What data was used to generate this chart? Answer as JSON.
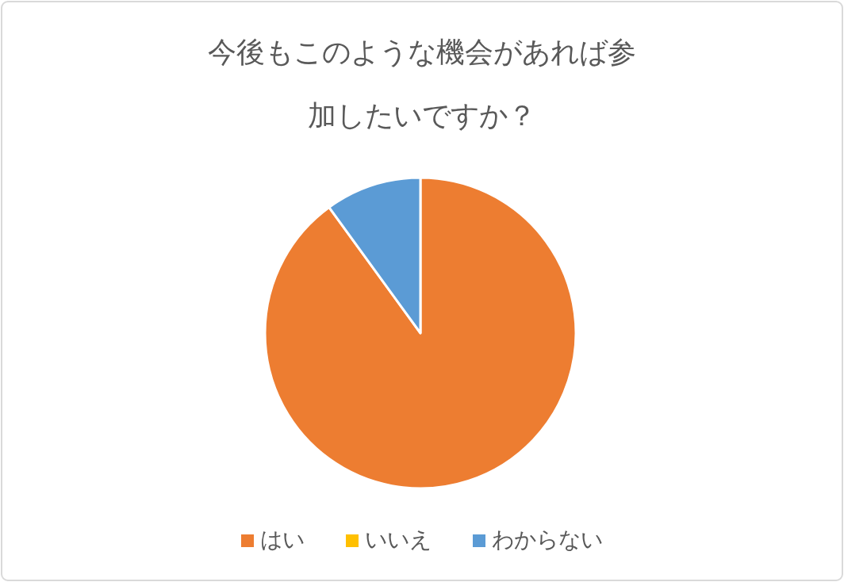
{
  "chart_data": {
    "type": "pie",
    "title": "今後もこのような機会があれば参加したいですか？",
    "categories": [
      "はい",
      "いいえ",
      "わからない"
    ],
    "values": [
      90,
      0,
      10
    ],
    "colors": [
      "#ed7d31",
      "#ffc000",
      "#5b9bd5"
    ],
    "legend": "bottom"
  }
}
